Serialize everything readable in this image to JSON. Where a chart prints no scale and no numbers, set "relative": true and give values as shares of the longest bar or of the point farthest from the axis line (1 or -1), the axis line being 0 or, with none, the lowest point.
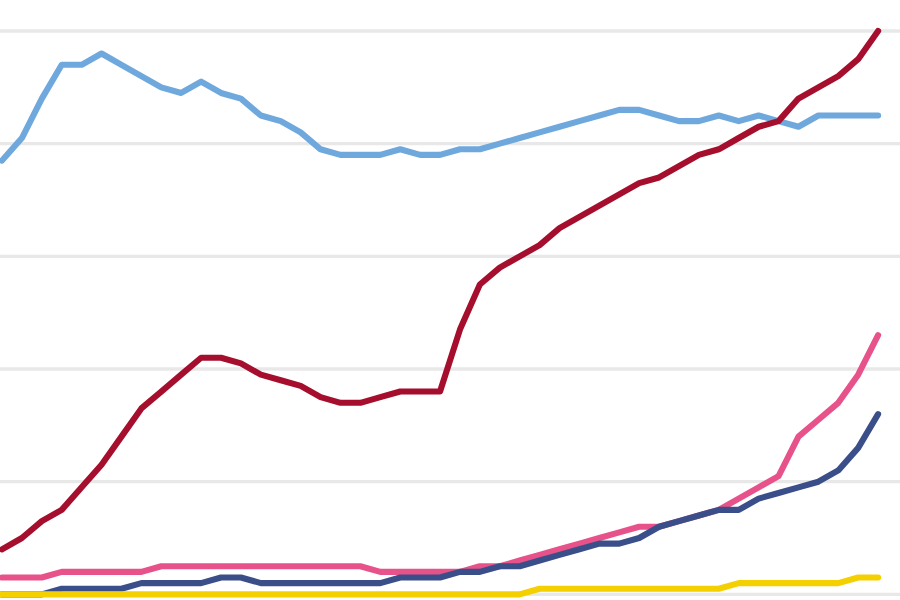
{
  "chart_data": {
    "type": "line",
    "relative": true,
    "grid": "y",
    "categories": [
      null,
      null,
      null,
      null,
      null,
      null,
      null,
      null,
      null,
      null,
      null,
      null,
      null,
      null,
      null,
      null,
      null,
      null,
      null,
      null,
      null,
      null,
      null,
      null,
      null,
      null,
      null,
      null,
      null,
      null,
      null,
      null,
      null,
      null,
      null,
      null,
      null,
      null,
      null,
      null,
      null,
      null,
      null,
      null,
      null
    ],
    "series": [
      {
        "color": "#6fa8dc",
        "values": [
          0.77,
          0.81,
          0.88,
          0.94,
          0.94,
          0.96,
          0.94,
          0.92,
          0.9,
          0.89,
          0.91,
          0.89,
          0.88,
          0.85,
          0.84,
          0.82,
          0.79,
          0.78,
          0.78,
          0.78,
          0.79,
          0.78,
          0.78,
          0.79,
          0.79,
          0.8,
          0.81,
          0.82,
          0.83,
          0.84,
          0.85,
          0.86,
          0.86,
          0.85,
          0.84,
          0.84,
          0.85,
          0.84,
          0.85,
          0.84,
          0.83,
          0.85,
          0.85,
          0.85,
          0.85
        ]
      },
      {
        "color": "#a50e2d",
        "values": [
          0.08,
          0.1,
          0.13,
          0.15,
          0.19,
          0.23,
          0.28,
          0.33,
          0.36,
          0.39,
          0.42,
          0.42,
          0.41,
          0.39,
          0.38,
          0.37,
          0.35,
          0.34,
          0.34,
          0.35,
          0.36,
          0.36,
          0.36,
          0.47,
          0.55,
          0.58,
          0.6,
          0.62,
          0.65,
          0.67,
          0.69,
          0.71,
          0.73,
          0.74,
          0.76,
          0.78,
          0.79,
          0.81,
          0.83,
          0.84,
          0.88,
          0.9,
          0.92,
          0.95,
          1
        ]
      },
      {
        "color": "#e8528a",
        "values": [
          0.03,
          0.03,
          0.03,
          0.04,
          0.04,
          0.04,
          0.04,
          0.04,
          0.05,
          0.05,
          0.05,
          0.05,
          0.05,
          0.05,
          0.05,
          0.05,
          0.05,
          0.05,
          0.05,
          0.04,
          0.04,
          0.04,
          0.04,
          0.04,
          0.05,
          0.05,
          0.06,
          0.07,
          0.08,
          0.09,
          0.1,
          0.11,
          0.12,
          0.12,
          0.13,
          0.14,
          0.15,
          0.17,
          0.19,
          0.21,
          0.28,
          0.31,
          0.34,
          0.39,
          0.46
        ]
      },
      {
        "color": "#3a4f8a",
        "values": [
          0,
          0,
          0,
          0.01,
          0.01,
          0.01,
          0.01,
          0.02,
          0.02,
          0.02,
          0.02,
          0.03,
          0.03,
          0.02,
          0.02,
          0.02,
          0.02,
          0.02,
          0.02,
          0.02,
          0.03,
          0.03,
          0.03,
          0.04,
          0.04,
          0.05,
          0.05,
          0.06,
          0.07,
          0.08,
          0.09,
          0.09,
          0.1,
          0.12,
          0.13,
          0.14,
          0.15,
          0.15,
          0.17,
          0.18,
          0.19,
          0.2,
          0.22,
          0.26,
          0.32
        ]
      },
      {
        "color": "#f5d000",
        "values": [
          0,
          0,
          0,
          0,
          0,
          0,
          0,
          0,
          0,
          0,
          0,
          0,
          0,
          0,
          0,
          0,
          0,
          0,
          0,
          0,
          0,
          0,
          0,
          0,
          0,
          0,
          0,
          0.01,
          0.01,
          0.01,
          0.01,
          0.01,
          0.01,
          0.01,
          0.01,
          0.01,
          0.01,
          0.02,
          0.02,
          0.02,
          0.02,
          0.02,
          0.02,
          0.03,
          0.03
        ]
      }
    ]
  }
}
